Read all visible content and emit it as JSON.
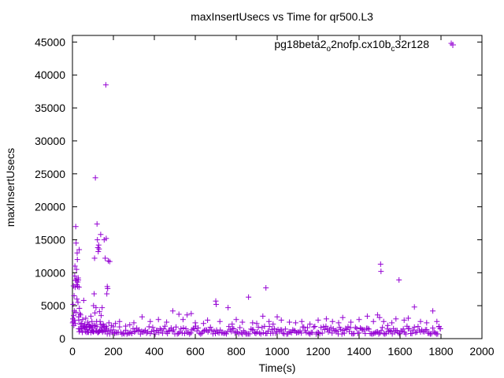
{
  "chart_data": {
    "type": "scatter",
    "title": "maxInsertUsecs vs Time for qr500.L3",
    "xlabel": "Time(s)",
    "ylabel": "maxInsertUsecs",
    "xlim": [
      0,
      2000
    ],
    "ylim": [
      0,
      46000
    ],
    "x_ticks": [
      0,
      200,
      400,
      600,
      800,
      1000,
      1200,
      1400,
      1600,
      1800,
      2000
    ],
    "y_ticks": [
      0,
      5000,
      10000,
      15000,
      20000,
      25000,
      30000,
      35000,
      40000,
      45000
    ],
    "grid": false,
    "legend_position": "top-right",
    "series": [
      {
        "name_parts": [
          "pg18beta2",
          "o",
          "2nofp.cx10b",
          "c",
          "32r128"
        ],
        "color": "#9400d3",
        "marker": "plus",
        "points": [
          [
            1,
            2400
          ],
          [
            2,
            3000
          ],
          [
            3,
            5200
          ],
          [
            4,
            2600
          ],
          [
            5,
            8000
          ],
          [
            6,
            3500
          ],
          [
            7,
            2000
          ],
          [
            8,
            6500
          ],
          [
            9,
            4200
          ],
          [
            10,
            2800
          ],
          [
            11,
            9500
          ],
          [
            12,
            11000
          ],
          [
            13,
            7800
          ],
          [
            14,
            2300
          ],
          [
            15,
            8800
          ],
          [
            16,
            17000
          ],
          [
            17,
            4000
          ],
          [
            18,
            14500
          ],
          [
            19,
            9000
          ],
          [
            20,
            10500
          ],
          [
            21,
            8200
          ],
          [
            22,
            6000
          ],
          [
            23,
            13000
          ],
          [
            24,
            12000
          ],
          [
            25,
            7900
          ],
          [
            26,
            8600
          ],
          [
            27,
            5500
          ],
          [
            28,
            9200
          ],
          [
            29,
            8900
          ],
          [
            30,
            3300
          ],
          [
            31,
            2800
          ],
          [
            32,
            7800
          ],
          [
            33,
            13500
          ],
          [
            34,
            4600
          ],
          [
            36,
            3800
          ],
          [
            40,
            3600
          ],
          [
            45,
            2300
          ],
          [
            50,
            2900
          ],
          [
            55,
            5800
          ],
          [
            60,
            2200
          ],
          [
            65,
            3100
          ],
          [
            70,
            1900
          ],
          [
            75,
            2500
          ],
          [
            80,
            2100
          ],
          [
            85,
            1700
          ],
          [
            90,
            3400
          ],
          [
            95,
            2600
          ],
          [
            100,
            2000
          ],
          [
            103,
            5000
          ],
          [
            106,
            6800
          ],
          [
            108,
            12200
          ],
          [
            110,
            3900
          ],
          [
            112,
            24400
          ],
          [
            115,
            4700
          ],
          [
            118,
            2600
          ],
          [
            120,
            17400
          ],
          [
            122,
            15000
          ],
          [
            124,
            13800
          ],
          [
            126,
            13200
          ],
          [
            128,
            14200
          ],
          [
            130,
            13600
          ],
          [
            132,
            4100
          ],
          [
            135,
            2600
          ],
          [
            138,
            15800
          ],
          [
            140,
            3500
          ],
          [
            145,
            4700
          ],
          [
            150,
            2200
          ],
          [
            155,
            15000
          ],
          [
            160,
            12200
          ],
          [
            163,
            38500
          ],
          [
            165,
            15200
          ],
          [
            168,
            6800
          ],
          [
            170,
            7900
          ],
          [
            172,
            7600
          ],
          [
            175,
            11800
          ],
          [
            178,
            2400
          ],
          [
            182,
            11700
          ],
          [
            190,
            2000
          ],
          [
            200,
            1800
          ],
          [
            210,
            2300
          ],
          [
            230,
            2600
          ],
          [
            260,
            1900
          ],
          [
            280,
            2100
          ],
          [
            300,
            2400
          ],
          [
            340,
            3300
          ],
          [
            380,
            2600
          ],
          [
            420,
            2900
          ],
          [
            460,
            2500
          ],
          [
            490,
            4200
          ],
          [
            520,
            3700
          ],
          [
            540,
            2900
          ],
          [
            560,
            3600
          ],
          [
            580,
            3800
          ],
          [
            600,
            2400
          ],
          [
            640,
            2300
          ],
          [
            660,
            2800
          ],
          [
            700,
            5700
          ],
          [
            702,
            5200
          ],
          [
            720,
            2600
          ],
          [
            760,
            4700
          ],
          [
            780,
            2200
          ],
          [
            800,
            2900
          ],
          [
            830,
            2500
          ],
          [
            860,
            6300
          ],
          [
            880,
            2400
          ],
          [
            900,
            2300
          ],
          [
            930,
            3400
          ],
          [
            945,
            7700
          ],
          [
            960,
            2600
          ],
          [
            980,
            2200
          ],
          [
            1000,
            3300
          ],
          [
            1020,
            2800
          ],
          [
            1060,
            2500
          ],
          [
            1090,
            2400
          ],
          [
            1120,
            2600
          ],
          [
            1160,
            2200
          ],
          [
            1200,
            2800
          ],
          [
            1240,
            3000
          ],
          [
            1270,
            2600
          ],
          [
            1300,
            2400
          ],
          [
            1320,
            3200
          ],
          [
            1360,
            2500
          ],
          [
            1400,
            2900
          ],
          [
            1440,
            3400
          ],
          [
            1470,
            2600
          ],
          [
            1490,
            3600
          ],
          [
            1500,
            3200
          ],
          [
            1505,
            11300
          ],
          [
            1507,
            10200
          ],
          [
            1520,
            2600
          ],
          [
            1540,
            2000
          ],
          [
            1560,
            2400
          ],
          [
            1580,
            3000
          ],
          [
            1595,
            8900
          ],
          [
            1620,
            2800
          ],
          [
            1640,
            3100
          ],
          [
            1670,
            4800
          ],
          [
            1700,
            2600
          ],
          [
            1730,
            2400
          ],
          [
            1760,
            4200
          ],
          [
            1780,
            2600
          ],
          [
            1790,
            1800
          ],
          [
            1797,
            1500
          ],
          [
            1850,
            44800
          ]
        ],
        "baseline": {
          "x_start": 170,
          "x_end": 1800,
          "step": 6,
          "low": 700,
          "high": 1900
        },
        "early_baseline": {
          "x_start": 30,
          "x_end": 170,
          "step": 3,
          "low": 900,
          "high": 2200
        }
      }
    ]
  }
}
